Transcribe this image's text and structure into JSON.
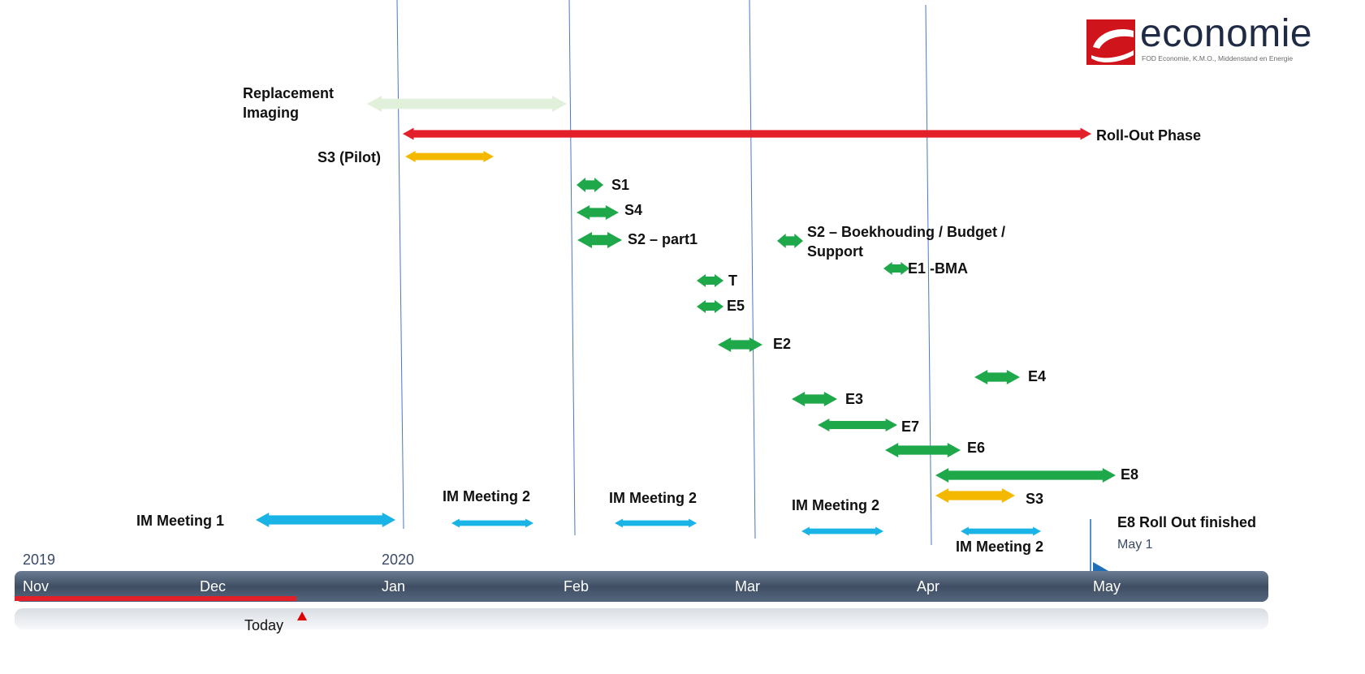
{
  "logo": {
    "word": "economie",
    "subtitle": "FOD Economie, K.M.O., Middenstand en Energie"
  },
  "colors": {
    "red": "#e3202a",
    "yellow": "#f5b800",
    "green": "#1fa84a",
    "blue": "#1ab3e6",
    "pale_green": "#e0f0da",
    "axis_dark": "#4a5a70",
    "today_marker": "#e00000",
    "milestone": "#1f6fb8",
    "grid_line": "#4a78c9"
  },
  "timeline": {
    "year_labels": [
      "2019",
      "2020"
    ],
    "months": [
      "Nov",
      "Dec",
      "Jan",
      "Feb",
      "Mar",
      "Apr",
      "May"
    ],
    "today_label": "Today"
  },
  "tasks": [
    {
      "label": "Replacement\nImaging",
      "color": "pale_green"
    },
    {
      "label": "Roll-Out Phase",
      "color": "red"
    },
    {
      "label": "S3 (Pilot)",
      "color": "yellow"
    },
    {
      "label": "S1",
      "color": "green"
    },
    {
      "label": "S4",
      "color": "green"
    },
    {
      "label": "S2 – part1",
      "color": "green"
    },
    {
      "label": "S2 – Boekhouding / Budget /\nSupport",
      "color": "green"
    },
    {
      "label": "E1 -BMA",
      "color": "green"
    },
    {
      "label": "T",
      "color": "green"
    },
    {
      "label": "E5",
      "color": "green"
    },
    {
      "label": "E2",
      "color": "green"
    },
    {
      "label": "E4",
      "color": "green"
    },
    {
      "label": "E3",
      "color": "green"
    },
    {
      "label": "E7",
      "color": "green"
    },
    {
      "label": "E6",
      "color": "green"
    },
    {
      "label": "E8",
      "color": "green"
    },
    {
      "label": "S3",
      "color": "yellow"
    },
    {
      "label": "IM Meeting 1",
      "color": "blue"
    },
    {
      "label": "IM Meeting 2",
      "color": "blue"
    },
    {
      "label": "IM Meeting 2",
      "color": "blue"
    },
    {
      "label": "IM Meeting 2",
      "color": "blue"
    },
    {
      "label": "IM Meeting 2",
      "color": "blue"
    }
  ],
  "milestone": {
    "label": "E8 Roll Out finished",
    "date": "May 1"
  }
}
